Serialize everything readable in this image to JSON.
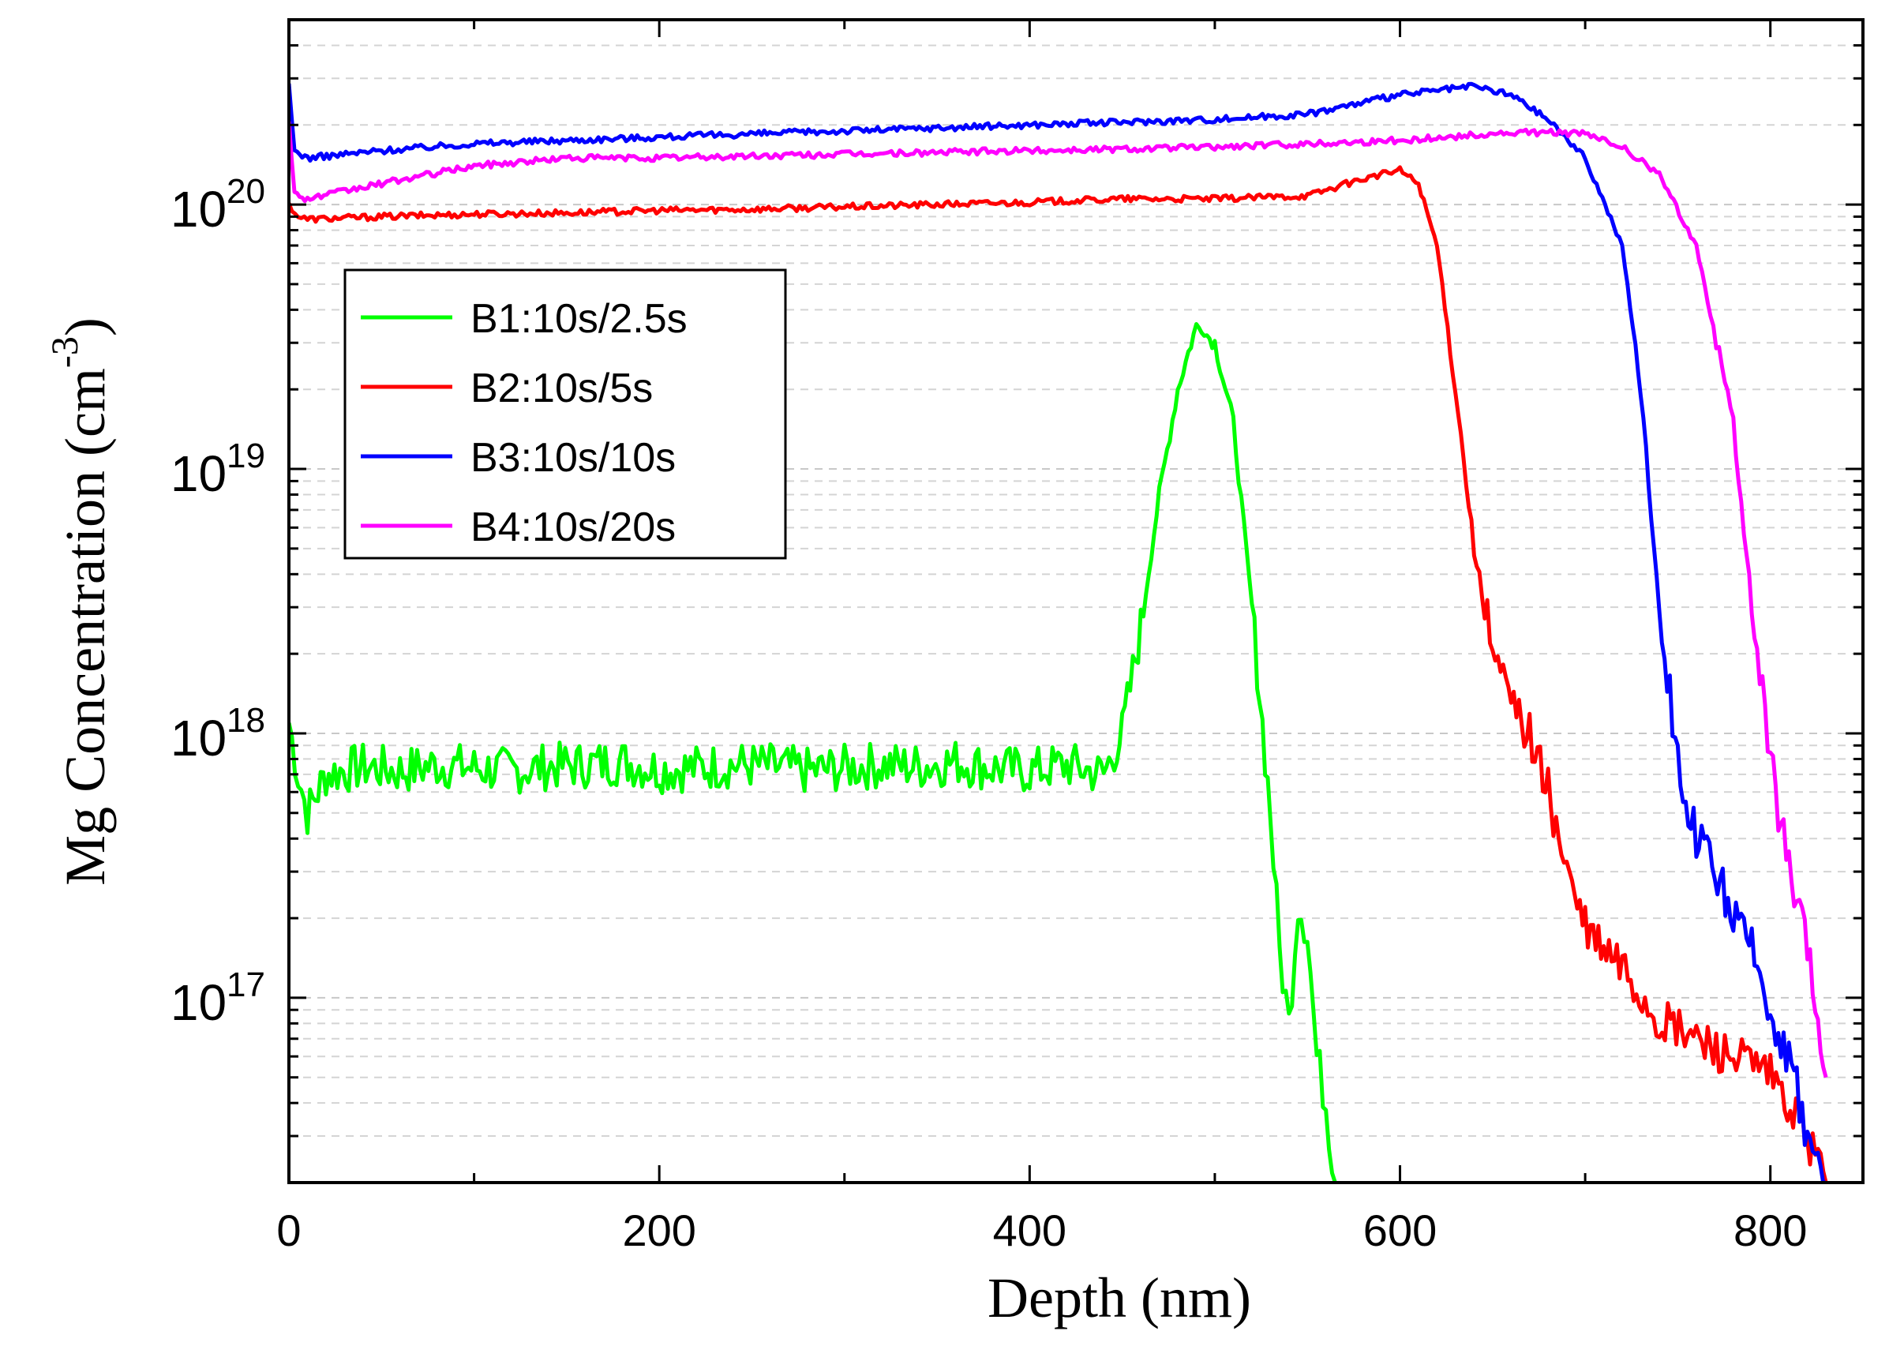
{
  "chart_data": {
    "type": "line",
    "title": "",
    "xlabel": "Depth (nm)",
    "ylabel": {
      "prefix": "Mg Concentration (cm",
      "superscript": "-3",
      "suffix": ")"
    },
    "xscale": "linear",
    "yscale": "log",
    "xlim": [
      0,
      850
    ],
    "ylim": [
      2e+16,
      5e+20
    ],
    "x_ticks": [
      0,
      200,
      400,
      600,
      800
    ],
    "x_tick_labels": [
      "0",
      "200",
      "400",
      "600",
      "800"
    ],
    "y_ticks": [
      1e+17,
      1e+18,
      1e+19,
      1e+20
    ],
    "y_tick_labels": [
      {
        "base": "10",
        "exp": "17"
      },
      {
        "base": "10",
        "exp": "18"
      },
      {
        "base": "10",
        "exp": "19"
      },
      {
        "base": "10",
        "exp": "20"
      }
    ],
    "grid": "horizontal dashed",
    "legend_position": "upper-left",
    "series": [
      {
        "name": "B1:10s/2.5s",
        "color": "#00ff00",
        "x": [
          0,
          5,
          10,
          20,
          40,
          60,
          80,
          100,
          120,
          140,
          160,
          180,
          200,
          220,
          240,
          260,
          280,
          300,
          320,
          340,
          360,
          380,
          400,
          420,
          440,
          450,
          460,
          470,
          480,
          490,
          500,
          510,
          520,
          530,
          535,
          540,
          545,
          550,
          555,
          560,
          565
        ],
        "y": [
          1.1e+18,
          7e+17,
          5e+17,
          7e+17,
          7.5e+17,
          7.2e+17,
          7.6e+17,
          7.4e+17,
          7.2e+17,
          7.5e+17,
          7.6e+17,
          7.8e+17,
          7.3e+17,
          7.4e+17,
          7.6e+17,
          7.5e+17,
          7.2e+17,
          7.4e+17,
          7.6e+17,
          7.5e+17,
          7.8e+17,
          7.4e+17,
          7.2e+17,
          7.6e+17,
          7e+17,
          1e+18,
          2.5e+18,
          8e+18,
          2e+19,
          3.5e+19,
          3e+19,
          1.5e+19,
          3e+18,
          5e+17,
          1.5e+17,
          8e+16,
          2.3e+17,
          1.8e+17,
          6e+16,
          4e+16,
          2e+16
        ]
      },
      {
        "name": "B2:10s/5s",
        "color": "#ff0000",
        "x": [
          0,
          5,
          10,
          50,
          100,
          150,
          200,
          250,
          300,
          350,
          400,
          450,
          500,
          550,
          580,
          600,
          610,
          620,
          630,
          640,
          650,
          660,
          670,
          680,
          690,
          700,
          710,
          720,
          740,
          760,
          780,
          800,
          820,
          830
        ],
        "y": [
          1e+20,
          9e+19,
          8.8e+19,
          9e+19,
          9.2e+19,
          9.3e+19,
          9.5e+19,
          9.6e+19,
          9.8e+19,
          1e+20,
          1.02e+20,
          1.05e+20,
          1.05e+20,
          1.08e+20,
          1.25e+20,
          1.35e+20,
          1.2e+20,
          7e+19,
          2e+19,
          5e+18,
          2e+18,
          1.3e+18,
          1e+18,
          6e+17,
          3e+17,
          1.8e+17,
          1.5e+17,
          1.3e+17,
          8e+16,
          7e+16,
          6e+16,
          5e+16,
          3e+16,
          2e+16
        ]
      },
      {
        "name": "B3:10s/10s",
        "color": "#0000ff",
        "x": [
          0,
          3,
          10,
          50,
          100,
          200,
          300,
          400,
          500,
          550,
          600,
          640,
          660,
          680,
          700,
          720,
          730,
          740,
          750,
          760,
          770,
          780,
          790,
          800,
          810,
          820,
          830
        ],
        "y": [
          2.8e+20,
          1.6e+20,
          1.5e+20,
          1.6e+20,
          1.7e+20,
          1.8e+20,
          1.9e+20,
          2e+20,
          2.1e+20,
          2.2e+20,
          2.6e+20,
          2.8e+20,
          2.6e+20,
          2.1e+20,
          1.5e+20,
          7e+19,
          2e+19,
          3e+18,
          8e+17,
          4e+17,
          3e+17,
          2e+17,
          1.5e+17,
          9e+16,
          6e+16,
          3e+16,
          2e+16
        ]
      },
      {
        "name": "B4:10s/20s",
        "color": "#ff00ff",
        "x": [
          0,
          3,
          10,
          50,
          100,
          150,
          200,
          300,
          400,
          500,
          600,
          650,
          680,
          700,
          720,
          740,
          760,
          780,
          790,
          800,
          810,
          820,
          830
        ],
        "y": [
          2.1e+20,
          1.1e+20,
          1.05e+20,
          1.2e+20,
          1.4e+20,
          1.5e+20,
          1.5e+20,
          1.55e+20,
          1.6e+20,
          1.65e+20,
          1.75e+20,
          1.85e+20,
          1.88e+20,
          1.85e+20,
          1.65e+20,
          1.3e+20,
          7e+19,
          1.5e+19,
          3e+18,
          8e+17,
          3e+17,
          1.5e+17,
          5e+16
        ]
      }
    ]
  }
}
